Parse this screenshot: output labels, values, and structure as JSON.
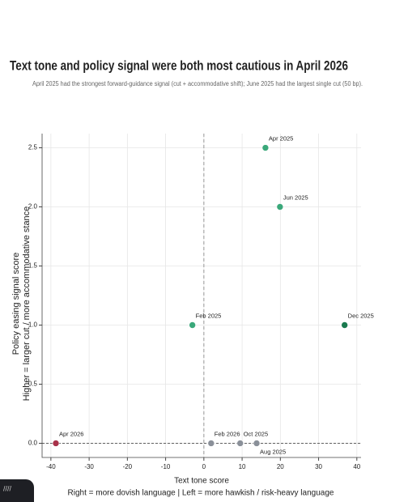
{
  "chart_data": {
    "type": "scatter",
    "title": "Text tone and policy signal were both most cautious in April 2026",
    "subtitle": "April 2025 had the strongest forward-guidance signal (cut + accommodative shift); June 2025 had the largest single cut (50 bp).",
    "xlabel": [
      "Text tone score",
      "Right = more dovish language | Left = more hawkish / risk-heavy language"
    ],
    "ylabel": [
      "Policy easing signal score",
      "Higher = larger cut / more accommodative stance"
    ],
    "labels": [
      "Apr 2026",
      "Feb 2026",
      "Oct 2025",
      "Aug 2025",
      "Feb 2025",
      "Apr 2025",
      "Jun 2025",
      "Dec 2025"
    ],
    "x": [
      -38.7,
      1.9,
      9.5,
      13.8,
      -3.0,
      16.1,
      19.9,
      36.8
    ],
    "values": [
      0,
      0,
      0,
      0,
      1.0,
      2.5,
      2.0,
      1.0
    ],
    "colors": [
      "#a8324a",
      "#8a9099",
      "#8a9099",
      "#8a9099",
      "#3aa87a",
      "#3aa87a",
      "#3aa87a",
      "#1a7a4f"
    ],
    "xlim": [
      -42.3,
      41.1
    ],
    "xticks": [
      -40,
      -30,
      -20,
      -10,
      0,
      10,
      20,
      30,
      40
    ],
    "ylim": [
      -0.12,
      2.62
    ],
    "yticks": [
      {
        "value": 0,
        "label": "0.0"
      },
      {
        "value": 0.5,
        "label": "0.5"
      },
      {
        "value": 1,
        "label": "1.0"
      },
      {
        "value": 1.5,
        "label": "1.5"
      },
      {
        "value": 2,
        "label": "2.0"
      },
      {
        "value": 2.5,
        "label": "2.5"
      }
    ],
    "grid": true
  }
}
